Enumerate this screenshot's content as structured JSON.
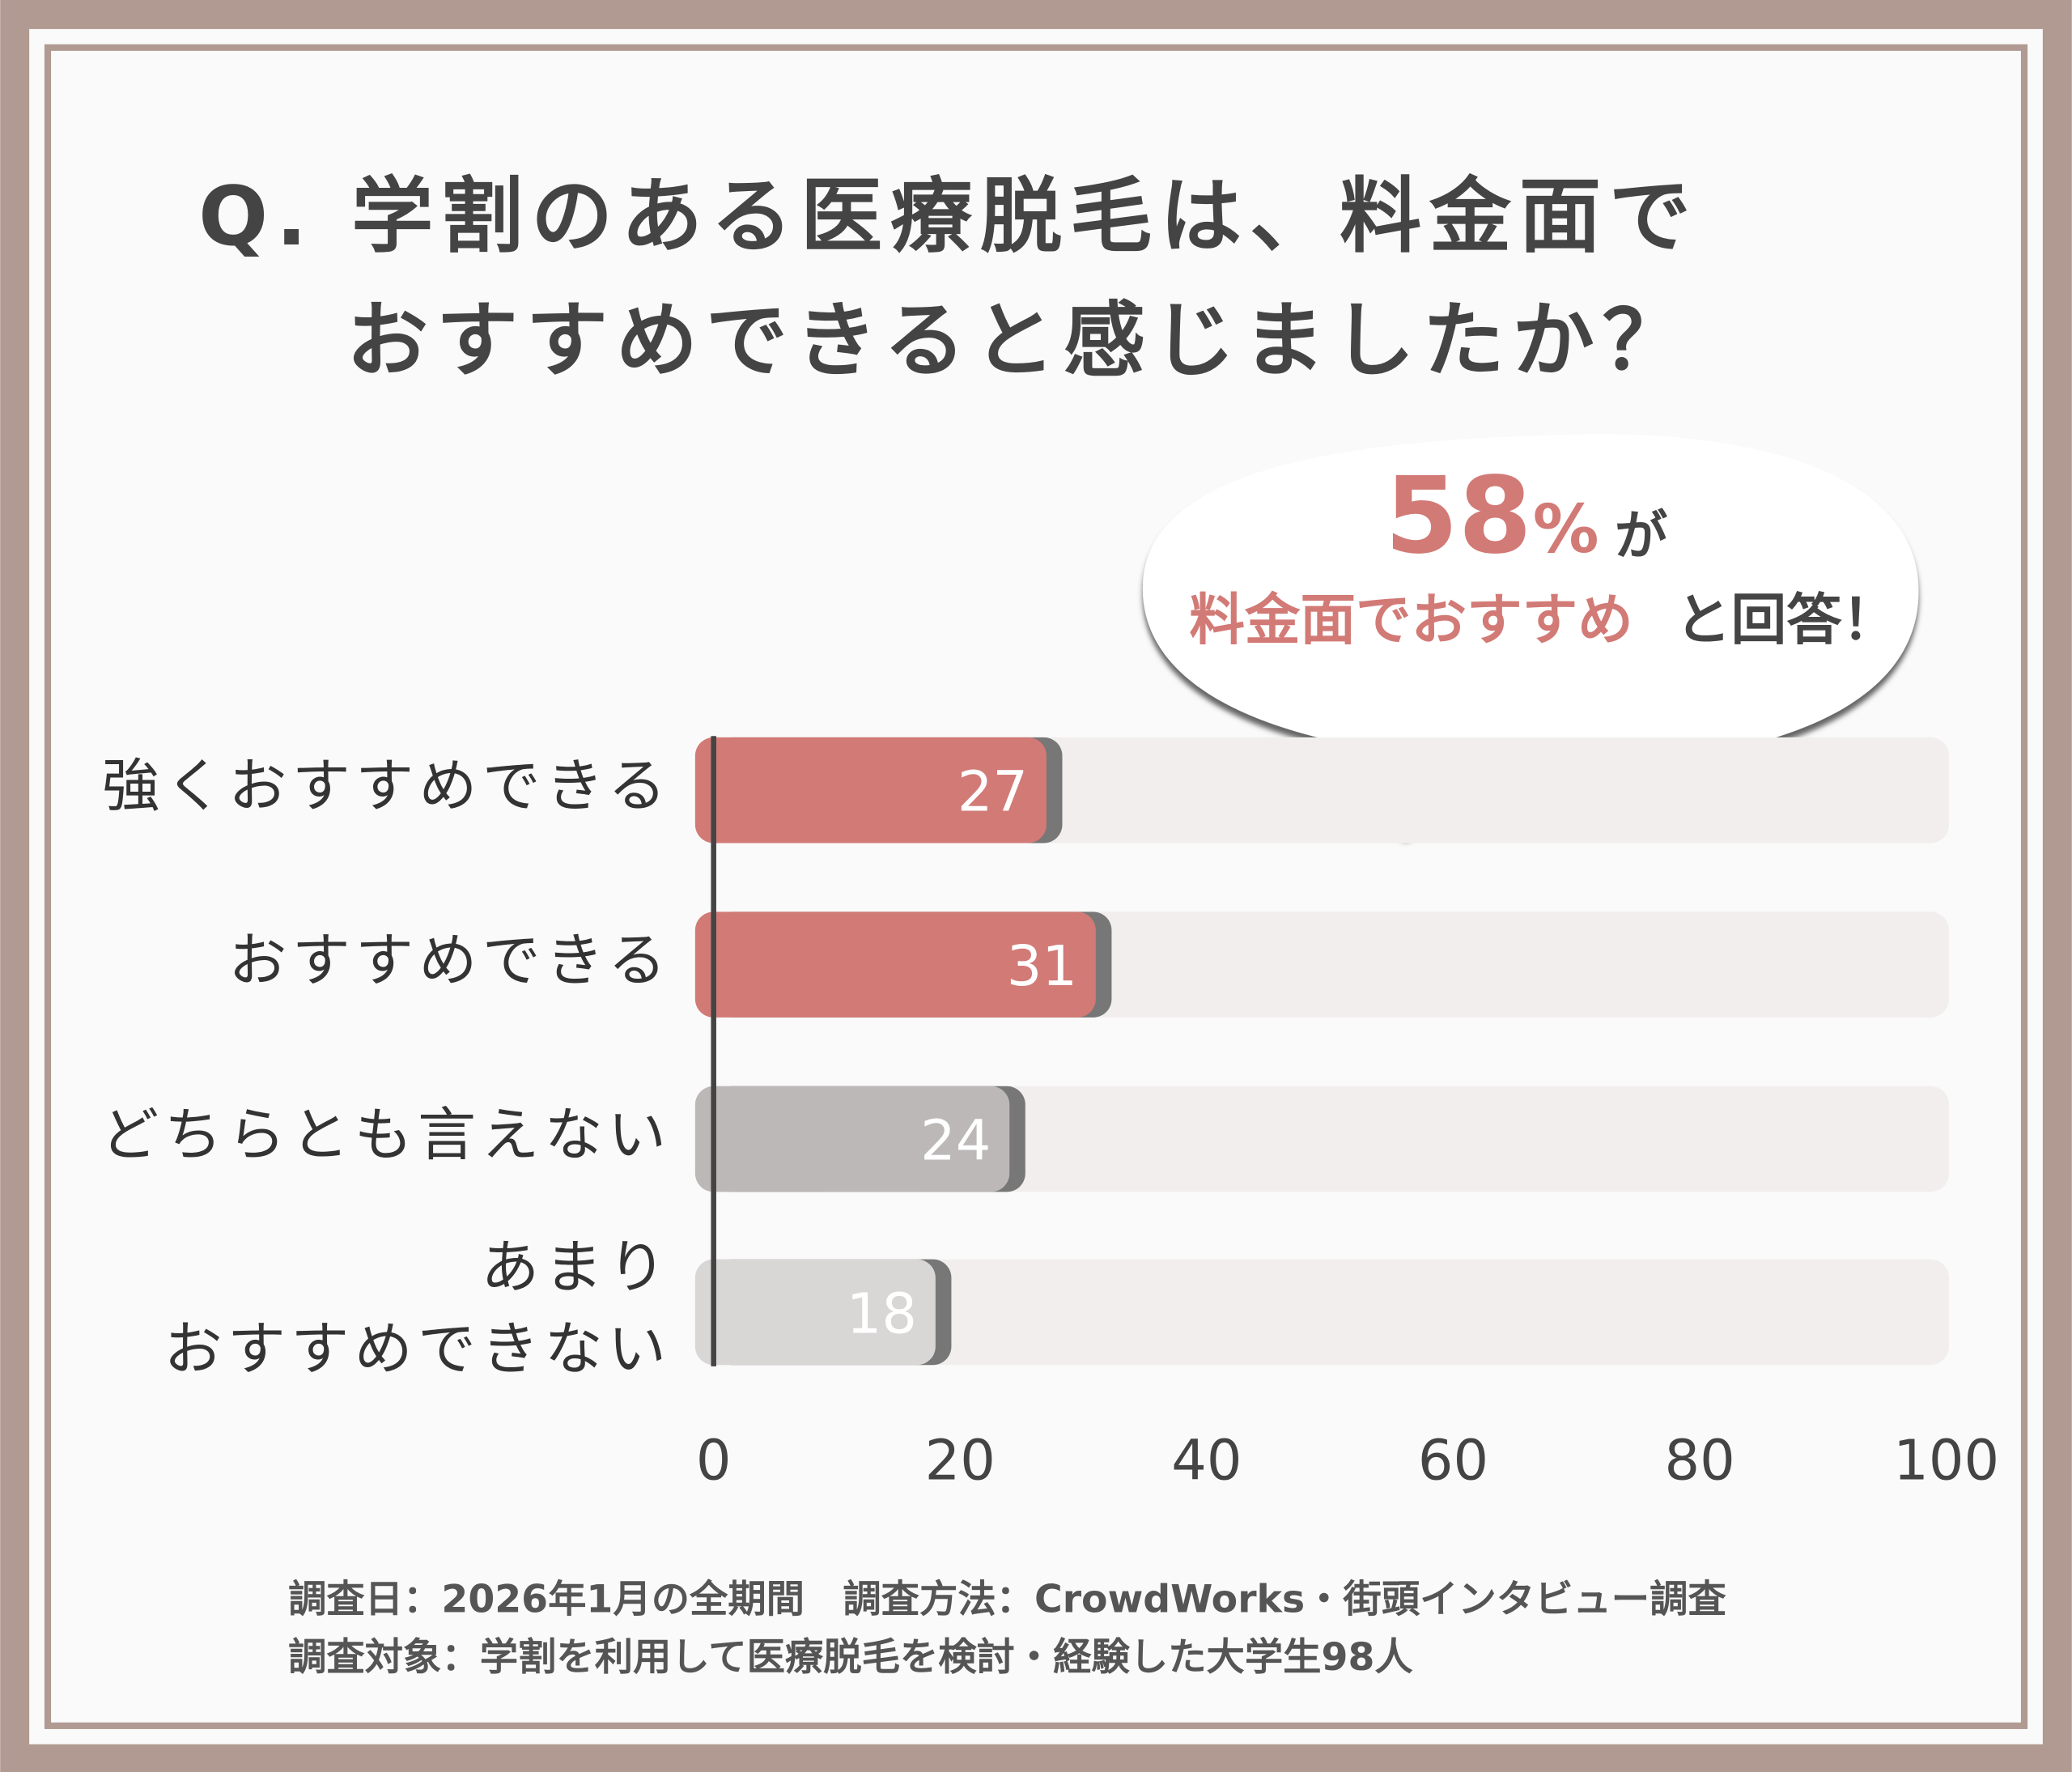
{
  "chart_data": {
    "type": "barh",
    "title": [
      "Q. 学割のある医療脱毛は、料金面で",
      "おすすめできると感じましたか？"
    ],
    "annotation": {
      "number": "58",
      "unit": "%",
      "particle": "が",
      "highlight": "料金面でおすすめ",
      "rest": "と回答！"
    },
    "categories": [
      [
        "強くおすすめできる"
      ],
      [
        "おすすめできる"
      ],
      [
        "どちらとも言えない"
      ],
      [
        "あまり",
        "おすすめできない"
      ]
    ],
    "values": [
      27,
      31,
      24,
      18
    ],
    "colors": [
      "#d27a76",
      "#d27a76",
      "#bdb8b8",
      "#d9d6d6"
    ],
    "xlim": [
      0,
      100
    ],
    "xticks": [
      0,
      20,
      40,
      60,
      80,
      100
    ],
    "footnotes": [
      "調査日：2026年1月の全期間　調査方法：CrowdWorks・街頭インタビュー調査",
      "調査対象：学割を利用して医療脱毛を検討・経験した大学生98人"
    ]
  }
}
